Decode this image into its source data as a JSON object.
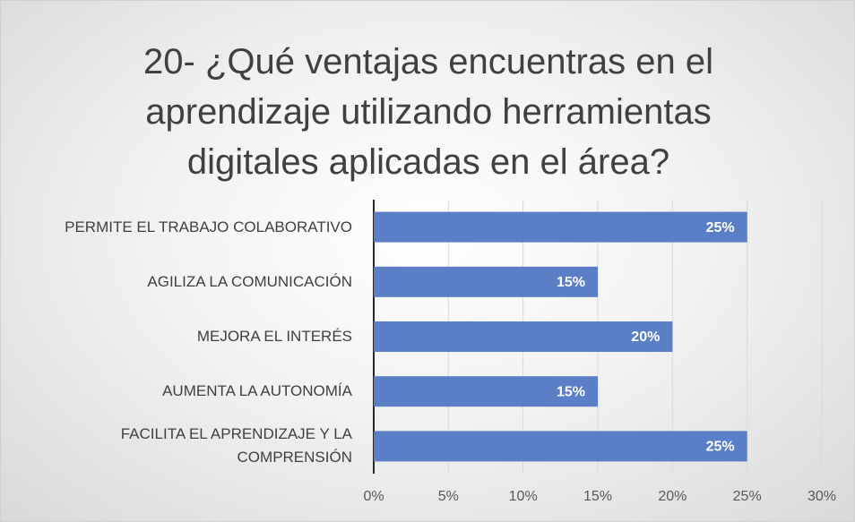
{
  "chart_data": {
    "type": "bar",
    "orientation": "horizontal",
    "title": "20- ¿Qué ventajas encuentras en el aprendizaje utilizando herramientas digitales aplicadas en el área?",
    "categories": [
      "PERMITE EL TRABAJO COLABORATIVO",
      "AGILIZA LA COMUNICACIÓN",
      "MEJORA EL INTERÉS",
      "AUMENTA LA AUTONOMÍA",
      "FACILITA  EL APRENDIZAJE Y LA COMPRENSIÓN"
    ],
    "values": [
      25,
      15,
      20,
      15,
      25
    ],
    "value_labels": [
      "25%",
      "15%",
      "20%",
      "15%",
      "25%"
    ],
    "color": "#5b7fc7",
    "xlim": [
      0,
      30
    ],
    "xticks": [
      {
        "value": 0,
        "label": "0%"
      },
      {
        "value": 5,
        "label": "5%"
      },
      {
        "value": 10,
        "label": "10%"
      },
      {
        "value": 15,
        "label": "15%"
      },
      {
        "value": 20,
        "label": "20%"
      },
      {
        "value": 25,
        "label": "25%"
      },
      {
        "value": 30,
        "label": "30%"
      }
    ],
    "grid": true
  }
}
